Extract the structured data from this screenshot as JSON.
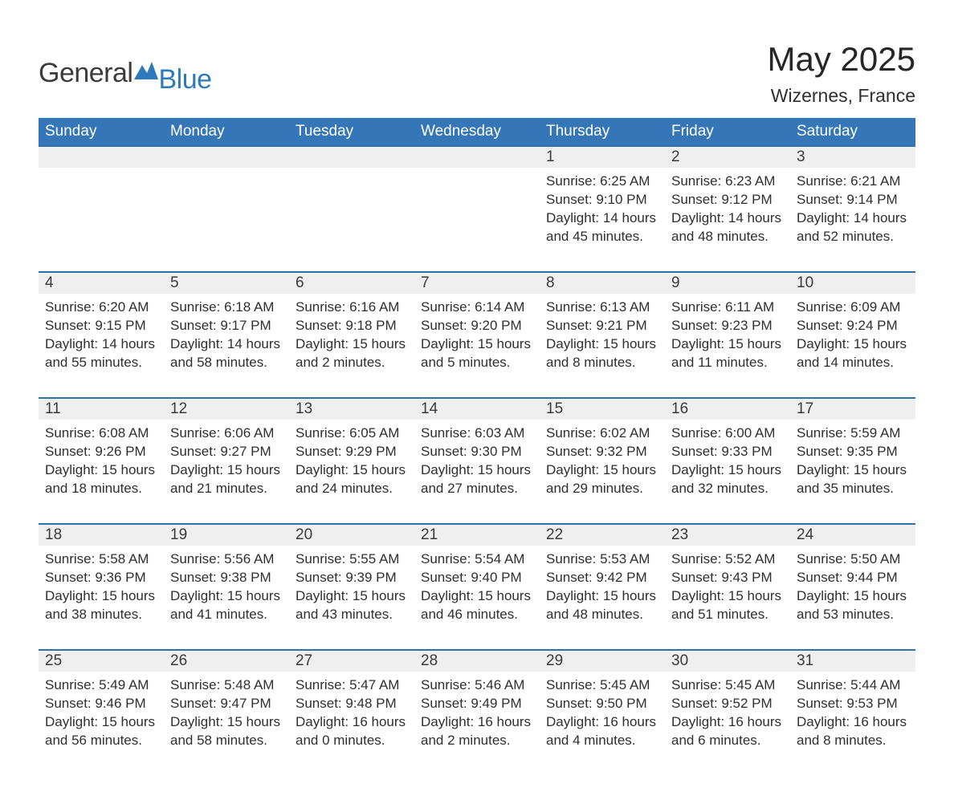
{
  "brand": {
    "word1": "General",
    "word2": "Blue"
  },
  "title": "May 2025",
  "location": "Wizernes, France",
  "style": {
    "header_bg": "#3576b8",
    "header_text": "#ffffff",
    "daynum_bg": "#efefef",
    "daynum_border": "#2e6fac",
    "body_text": "#2f2f2f",
    "page_bg": "#ffffff",
    "brand_accent": "#2e7abf",
    "title_fontsize": 42,
    "location_fontsize": 23,
    "header_fontsize": 19,
    "daynum_fontsize": 19,
    "cell_fontsize": 17,
    "columns": 7
  },
  "weekdays": [
    "Sunday",
    "Monday",
    "Tuesday",
    "Wednesday",
    "Thursday",
    "Friday",
    "Saturday"
  ],
  "weeks": [
    {
      "days": [
        null,
        null,
        null,
        null,
        {
          "n": "1",
          "sunrise": "6:25 AM",
          "sunset": "9:10 PM",
          "daylight": "14 hours and 45 minutes."
        },
        {
          "n": "2",
          "sunrise": "6:23 AM",
          "sunset": "9:12 PM",
          "daylight": "14 hours and 48 minutes."
        },
        {
          "n": "3",
          "sunrise": "6:21 AM",
          "sunset": "9:14 PM",
          "daylight": "14 hours and 52 minutes."
        }
      ]
    },
    {
      "days": [
        {
          "n": "4",
          "sunrise": "6:20 AM",
          "sunset": "9:15 PM",
          "daylight": "14 hours and 55 minutes."
        },
        {
          "n": "5",
          "sunrise": "6:18 AM",
          "sunset": "9:17 PM",
          "daylight": "14 hours and 58 minutes."
        },
        {
          "n": "6",
          "sunrise": "6:16 AM",
          "sunset": "9:18 PM",
          "daylight": "15 hours and 2 minutes."
        },
        {
          "n": "7",
          "sunrise": "6:14 AM",
          "sunset": "9:20 PM",
          "daylight": "15 hours and 5 minutes."
        },
        {
          "n": "8",
          "sunrise": "6:13 AM",
          "sunset": "9:21 PM",
          "daylight": "15 hours and 8 minutes."
        },
        {
          "n": "9",
          "sunrise": "6:11 AM",
          "sunset": "9:23 PM",
          "daylight": "15 hours and 11 minutes."
        },
        {
          "n": "10",
          "sunrise": "6:09 AM",
          "sunset": "9:24 PM",
          "daylight": "15 hours and 14 minutes."
        }
      ]
    },
    {
      "days": [
        {
          "n": "11",
          "sunrise": "6:08 AM",
          "sunset": "9:26 PM",
          "daylight": "15 hours and 18 minutes."
        },
        {
          "n": "12",
          "sunrise": "6:06 AM",
          "sunset": "9:27 PM",
          "daylight": "15 hours and 21 minutes."
        },
        {
          "n": "13",
          "sunrise": "6:05 AM",
          "sunset": "9:29 PM",
          "daylight": "15 hours and 24 minutes."
        },
        {
          "n": "14",
          "sunrise": "6:03 AM",
          "sunset": "9:30 PM",
          "daylight": "15 hours and 27 minutes."
        },
        {
          "n": "15",
          "sunrise": "6:02 AM",
          "sunset": "9:32 PM",
          "daylight": "15 hours and 29 minutes."
        },
        {
          "n": "16",
          "sunrise": "6:00 AM",
          "sunset": "9:33 PM",
          "daylight": "15 hours and 32 minutes."
        },
        {
          "n": "17",
          "sunrise": "5:59 AM",
          "sunset": "9:35 PM",
          "daylight": "15 hours and 35 minutes."
        }
      ]
    },
    {
      "days": [
        {
          "n": "18",
          "sunrise": "5:58 AM",
          "sunset": "9:36 PM",
          "daylight": "15 hours and 38 minutes."
        },
        {
          "n": "19",
          "sunrise": "5:56 AM",
          "sunset": "9:38 PM",
          "daylight": "15 hours and 41 minutes."
        },
        {
          "n": "20",
          "sunrise": "5:55 AM",
          "sunset": "9:39 PM",
          "daylight": "15 hours and 43 minutes."
        },
        {
          "n": "21",
          "sunrise": "5:54 AM",
          "sunset": "9:40 PM",
          "daylight": "15 hours and 46 minutes."
        },
        {
          "n": "22",
          "sunrise": "5:53 AM",
          "sunset": "9:42 PM",
          "daylight": "15 hours and 48 minutes."
        },
        {
          "n": "23",
          "sunrise": "5:52 AM",
          "sunset": "9:43 PM",
          "daylight": "15 hours and 51 minutes."
        },
        {
          "n": "24",
          "sunrise": "5:50 AM",
          "sunset": "9:44 PM",
          "daylight": "15 hours and 53 minutes."
        }
      ]
    },
    {
      "days": [
        {
          "n": "25",
          "sunrise": "5:49 AM",
          "sunset": "9:46 PM",
          "daylight": "15 hours and 56 minutes."
        },
        {
          "n": "26",
          "sunrise": "5:48 AM",
          "sunset": "9:47 PM",
          "daylight": "15 hours and 58 minutes."
        },
        {
          "n": "27",
          "sunrise": "5:47 AM",
          "sunset": "9:48 PM",
          "daylight": "16 hours and 0 minutes."
        },
        {
          "n": "28",
          "sunrise": "5:46 AM",
          "sunset": "9:49 PM",
          "daylight": "16 hours and 2 minutes."
        },
        {
          "n": "29",
          "sunrise": "5:45 AM",
          "sunset": "9:50 PM",
          "daylight": "16 hours and 4 minutes."
        },
        {
          "n": "30",
          "sunrise": "5:45 AM",
          "sunset": "9:52 PM",
          "daylight": "16 hours and 6 minutes."
        },
        {
          "n": "31",
          "sunrise": "5:44 AM",
          "sunset": "9:53 PM",
          "daylight": "16 hours and 8 minutes."
        }
      ]
    }
  ],
  "labels": {
    "sunrise": "Sunrise: ",
    "sunset": "Sunset: ",
    "daylight": "Daylight: "
  }
}
